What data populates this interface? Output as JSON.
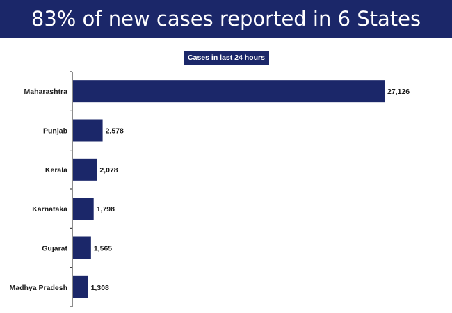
{
  "header": {
    "title": "83% of new cases reported in 6 States"
  },
  "colors": {
    "bar": "#1b2769",
    "header_bg": "#1b2769",
    "axis": "#1a1a1a"
  },
  "chart_data": {
    "type": "bar",
    "orientation": "horizontal",
    "title": "Cases in last 24 hours",
    "categories": [
      "Maharashtra",
      "Punjab",
      "Kerala",
      "Karnataka",
      "Gujarat",
      "Madhya Pradesh"
    ],
    "values": [
      27126,
      2578,
      2078,
      1798,
      1565,
      1308
    ],
    "value_labels": [
      "27,126",
      "2,578",
      "2,078",
      "1,798",
      "1,565",
      "1,308"
    ],
    "xlim": [
      0,
      27126
    ],
    "grid": false,
    "legend": "none"
  }
}
